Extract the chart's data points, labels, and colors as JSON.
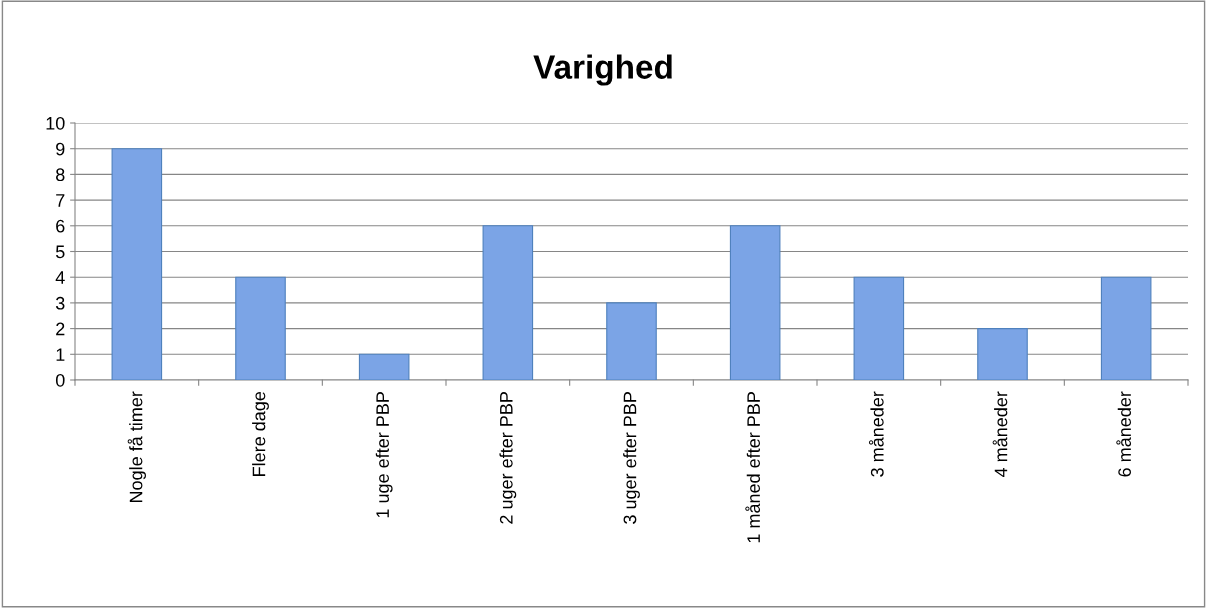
{
  "chart_data": {
    "type": "bar",
    "title": "Varighed",
    "categories": [
      "Nogle få timer",
      "Flere dage",
      "1 uge efter PBP",
      "2 uger efter PBP",
      "3 uger efter PBP",
      "1 måned efter PBP",
      "3 måneder",
      "4 måneder",
      "6 måneder"
    ],
    "values": [
      9,
      4,
      1,
      6,
      3,
      6,
      4,
      2,
      4
    ],
    "color": "#7ba4e6",
    "ylim": [
      0,
      10
    ],
    "yticks": [
      0,
      1,
      2,
      3,
      4,
      5,
      6,
      7,
      8,
      9,
      10
    ],
    "grid": "y",
    "legend": false
  }
}
